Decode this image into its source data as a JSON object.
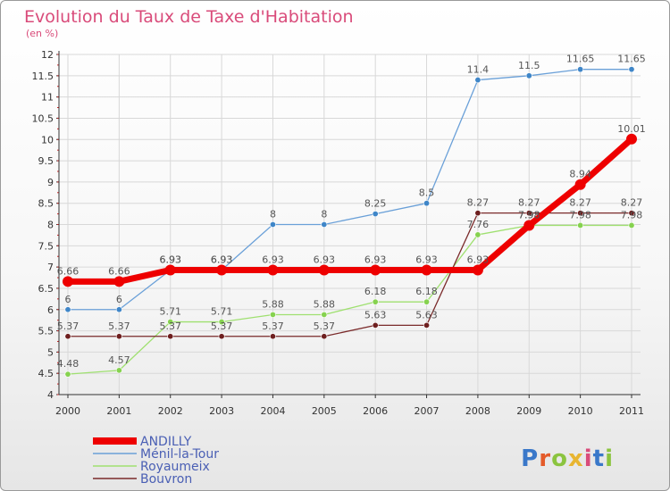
{
  "title": "Evolution du Taux de Taxe d'Habitation",
  "subtitle": "(en %)",
  "logo": {
    "text": "Proxiti",
    "colors": [
      "#3a78c9",
      "#e45b2a",
      "#8bc43f",
      "#e8b531",
      "#d94b7a",
      "#3a78c9",
      "#8bc43f"
    ]
  },
  "chart_data": {
    "type": "line",
    "title": "Evolution du Taux de Taxe d'Habitation",
    "ylabel": "(en %)",
    "xlabel": "",
    "x": [
      "2000",
      "2001",
      "2002",
      "2003",
      "2004",
      "2005",
      "2006",
      "2007",
      "2008",
      "2009",
      "2010",
      "2011"
    ],
    "ylim": [
      4,
      12
    ],
    "yticks": [
      "4",
      "4.5",
      "5",
      "5.5",
      "6",
      "6.5",
      "7",
      "7.5",
      "8",
      "8.5",
      "9",
      "9.5",
      "10",
      "10.5",
      "11",
      "11.5",
      "12"
    ],
    "grid": true,
    "legend_position": "bottom-left",
    "series": [
      {
        "name": "ANDILLY",
        "color": "#ee0000",
        "line_width": 7,
        "marker_radius": 6,
        "marker_fill": "#ee0000",
        "values": [
          6.66,
          6.66,
          6.93,
          6.93,
          6.93,
          6.93,
          6.93,
          6.93,
          6.93,
          7.98,
          8.94,
          10.01
        ],
        "labels": [
          "6.66",
          "6.66",
          "6.93",
          "6.93",
          "6.93",
          "6.93",
          "6.93",
          "6.93",
          "6.93",
          "7.98",
          "8.94",
          "10.01"
        ]
      },
      {
        "name": "Ménil-la-Tour",
        "color": "#6aa0d8",
        "line_width": 1.3,
        "marker_radius": 3.2,
        "marker_fill": "#3f86c8",
        "values": [
          6,
          6,
          6.93,
          6.93,
          8,
          8,
          8.25,
          8.5,
          11.4,
          11.5,
          11.65,
          11.65
        ],
        "labels": [
          "6",
          "6",
          "6.93",
          "6.93",
          "8",
          "8",
          "8.25",
          "8.5",
          "11.4",
          "11.5",
          "11.65",
          "11.65"
        ]
      },
      {
        "name": "Royaumeix",
        "color": "#9fe070",
        "line_width": 1.3,
        "marker_radius": 3.2,
        "marker_fill": "#86d24f",
        "values": [
          4.48,
          4.57,
          5.71,
          5.71,
          5.88,
          5.88,
          6.18,
          6.18,
          7.76,
          7.98,
          7.98,
          7.98
        ],
        "labels": [
          "4.48",
          "4.57",
          "5.71",
          "5.71",
          "5.88",
          "5.88",
          "6.18",
          "6.18",
          "7.76",
          "7.98",
          "7.98",
          "7.98"
        ]
      },
      {
        "name": "Bouvron",
        "color": "#7a2a2a",
        "line_width": 1.3,
        "marker_radius": 3.2,
        "marker_fill": "#6e1f1f",
        "values": [
          5.37,
          5.37,
          5.37,
          5.37,
          5.37,
          5.37,
          5.63,
          5.63,
          8.27,
          8.27,
          8.27,
          8.27
        ],
        "labels": [
          "5.37",
          "5.37",
          "5.37",
          "5.37",
          "5.37",
          "5.37",
          "5.63",
          "5.63",
          "8.27",
          "8.27",
          "8.27",
          "8.27"
        ]
      }
    ]
  }
}
